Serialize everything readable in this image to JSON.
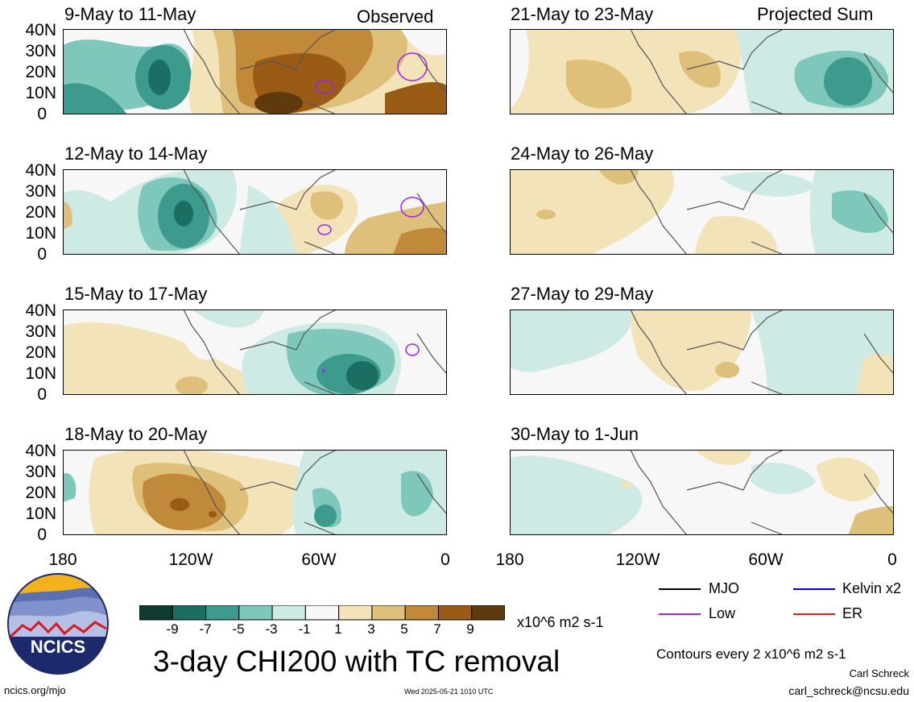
{
  "header": {
    "left_tag": "Observed",
    "right_tag": "Projected Sum"
  },
  "panels_left": [
    {
      "title": "9-May to 11-May"
    },
    {
      "title": "12-May to 14-May"
    },
    {
      "title": "15-May to 17-May"
    },
    {
      "title": "18-May to 20-May"
    }
  ],
  "panels_right": [
    {
      "title": "21-May to 23-May"
    },
    {
      "title": "24-May to 26-May"
    },
    {
      "title": "27-May to 29-May"
    },
    {
      "title": "30-May to 1-Jun"
    }
  ],
  "axes": {
    "lat_labels": [
      "40N",
      "30N",
      "20N",
      "10N",
      "0"
    ],
    "lon_labels": [
      "180",
      "120W",
      "60W",
      "0"
    ]
  },
  "colorbar": {
    "labels": [
      "-9",
      "-7",
      "-5",
      "-3",
      "-1",
      "1",
      "3",
      "5",
      "7",
      "9"
    ],
    "units": "x10^6 m2 s-1",
    "colors": [
      "#0d3b30",
      "#1a6e62",
      "#3d9b8e",
      "#7ec8bb",
      "#cdeae4",
      "#f7f7f7",
      "#f3e3b8",
      "#dfc07a",
      "#c08a3a",
      "#9a5c14",
      "#5e3a0c"
    ]
  },
  "title": "3-day CHI200 with TC removal",
  "legend": {
    "mjo": "MJO",
    "mjo_color": "#000000",
    "low": "Low",
    "low_color": "#a020f0",
    "kelvin": "Kelvin x2",
    "kelvin_color": "#0000cc",
    "er": "ER",
    "er_color": "#e41a1c"
  },
  "contours_note": "Contours every 2 x10^6 m2 s-1",
  "author": "Carl Schreck",
  "email": "carl_schreck@ncsu.edu",
  "logo_text": "NCICS",
  "site": "ncics.org/mjo",
  "timestamp": "Wed 2025-05-21 1010 UTC"
}
